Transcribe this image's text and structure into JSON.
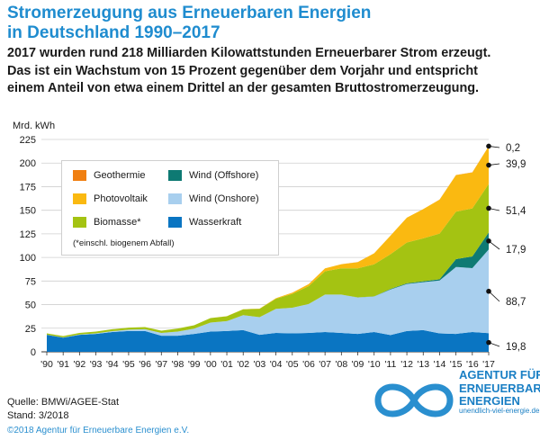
{
  "title_line1": "Stromerzeugung aus Erneuerbaren Energien",
  "title_line2": "in Deutschland 1990–2017",
  "subtitle_line1": "2017 wurden rund 218 Milliarden Kilowattstunden Erneuerbarer Strom erzeugt.",
  "subtitle_line2": "Das ist ein Wachstum von 15 Prozent gegenüber dem Vorjahr und entspricht",
  "subtitle_line3": "einem Anteil von etwa einem Drittel an der gesamten Bruttostromerzeugung.",
  "unit_label": "Mrd. kWh",
  "legend_note": "(*einschl. biogenem Abfall)",
  "footer": {
    "source": "Quelle: BMWi/AGEE-Stat",
    "date": "Stand: 3/2018",
    "copyright": "©2018 Agentur für Erneuerbare Energien e.V."
  },
  "logo": {
    "line1": "AGENTUR FÜR",
    "line2": "ERNEUERBARE",
    "line3": "ENERGIEN",
    "url": "unendlich-viel-energie.de"
  },
  "chart_data": {
    "type": "area",
    "stacked": true,
    "title": "Stromerzeugung aus Erneuerbaren Energien in Deutschland 1990–2017",
    "ylabel": "Mrd. kWh",
    "ylim": [
      0,
      225
    ],
    "yticks": [
      0,
      25,
      50,
      75,
      100,
      125,
      150,
      175,
      200,
      225
    ],
    "x": [
      "'90",
      "'91",
      "'92",
      "'93",
      "'94",
      "'95",
      "'96",
      "'97",
      "'98",
      "'99",
      "'00",
      "'01",
      "'02",
      "'03",
      "'04",
      "'05",
      "'06",
      "'07",
      "'08",
      "'09",
      "'10",
      "'11",
      "'12",
      "'13",
      "'14",
      "'15",
      "'16",
      "'17"
    ],
    "series": [
      {
        "name": "Wasserkraft",
        "color": "#0a75c2",
        "values": [
          18,
          15,
          18,
          19,
          21,
          22,
          22,
          17,
          17,
          19,
          21.5,
          22,
          23,
          18,
          20,
          19.5,
          20,
          21,
          20,
          19,
          21,
          17.7,
          22,
          23,
          19.6,
          19,
          21,
          19.8
        ]
      },
      {
        "name": "Wind (Onshore)",
        "color": "#a8cfee",
        "values": [
          0.1,
          0.2,
          0.3,
          0.6,
          0.9,
          1.5,
          2,
          3,
          4.5,
          5.5,
          9.5,
          10.5,
          15.8,
          18.7,
          25.5,
          27.2,
          30.7,
          39.7,
          40.6,
          38.6,
          37.6,
          48.3,
          49.9,
          50.8,
          55.9,
          70.9,
          67.7,
          88.7
        ]
      },
      {
        "name": "Wind (Offshore)",
        "color": "#0e7a73",
        "values": [
          0,
          0,
          0,
          0,
          0,
          0,
          0,
          0,
          0,
          0,
          0,
          0,
          0,
          0,
          0,
          0,
          0,
          0,
          0,
          0.04,
          0.2,
          0.6,
          0.7,
          0.9,
          1.4,
          8.3,
          12.3,
          17.9
        ]
      },
      {
        "name": "Biomasse*",
        "color": "#a4c312",
        "values": [
          1.5,
          1.5,
          1.7,
          1.9,
          2,
          2.1,
          2.2,
          2.4,
          3.2,
          3.6,
          4.7,
          5.2,
          6.2,
          8.8,
          10.7,
          14.7,
          18.9,
          24.6,
          27.8,
          30.8,
          33.9,
          36.9,
          43.2,
          45.5,
          48.3,
          50.3,
          50.9,
          51.4
        ]
      },
      {
        "name": "Photovoltaik",
        "color": "#fab911",
        "values": [
          0,
          0,
          0,
          0,
          0,
          0,
          0,
          0,
          0,
          0,
          0.06,
          0.1,
          0.2,
          0.3,
          0.6,
          1.3,
          2.2,
          3.1,
          4.4,
          6.6,
          11.7,
          19.6,
          26.4,
          31,
          36.1,
          38.7,
          38.1,
          39.9
        ]
      },
      {
        "name": "Geothermie",
        "color": "#f07f11",
        "values": [
          0,
          0,
          0,
          0,
          0,
          0,
          0,
          0,
          0,
          0,
          0,
          0,
          0,
          0,
          0,
          0,
          0,
          0.02,
          0.02,
          0.02,
          0.03,
          0.02,
          0.03,
          0.08,
          0.1,
          0.13,
          0.18,
          0.2
        ]
      }
    ],
    "end_labels": [
      "19,8",
      "88,7",
      "17,9",
      "51,4",
      "39,9",
      "0,2"
    ],
    "legend_order": [
      "Geothermie",
      "Wind (Offshore)",
      "Photovoltaik",
      "Wind (Onshore)",
      "Biomasse*",
      "Wasserkraft"
    ],
    "grid": true,
    "legend_position": "upper-left"
  }
}
